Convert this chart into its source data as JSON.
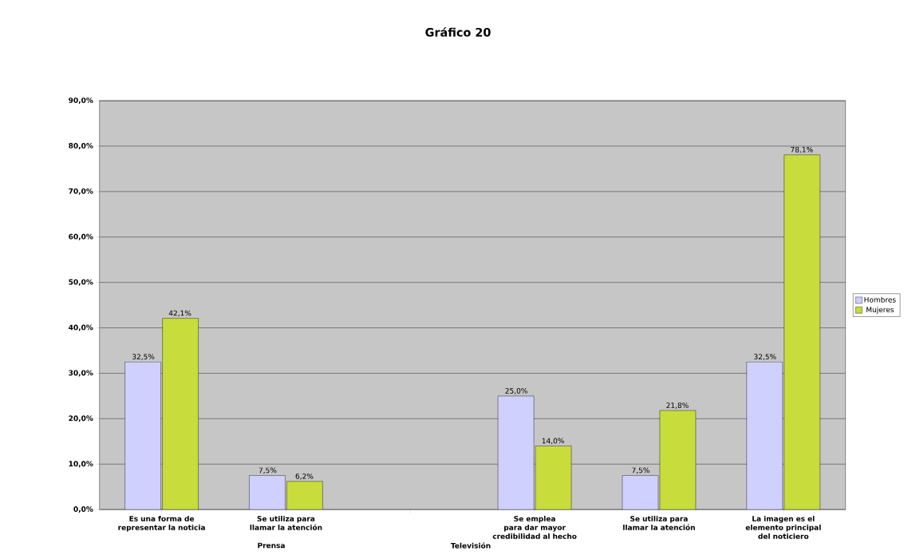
{
  "chart_data": {
    "type": "bar",
    "title": "Gráfico 20",
    "categories": [
      "Es una forma de representar la noticia",
      "Se utiliza para llamar la atención",
      null,
      "Se emplea para dar mayor credibilidad al hecho",
      "Se utiliza para llamar la atención",
      "La imagen es el elemento principal del noticiero"
    ],
    "series": [
      {
        "name": "Hombres",
        "color": "#d0d0ff",
        "values": [
          32.5,
          7.5,
          null,
          25.0,
          7.5,
          32.5
        ],
        "value_labels": [
          "32,5%",
          "7,5%",
          null,
          "25,0%",
          "7,5%",
          "32,5%"
        ]
      },
      {
        "name": "Mujeres",
        "color": "#c8dc3c",
        "values": [
          42.1,
          6.2,
          null,
          14.0,
          21.8,
          78.1
        ],
        "value_labels": [
          "42,1%",
          "6,2%",
          null,
          "14,0%",
          "21,8%",
          "78,1%"
        ]
      }
    ],
    "ylim": [
      0,
      90
    ],
    "yticks": [
      {
        "value": 0,
        "label": "0,0%"
      },
      {
        "value": 10,
        "label": "10,0%"
      },
      {
        "value": 20,
        "label": "20,0%"
      },
      {
        "value": 30,
        "label": "30,0%"
      },
      {
        "value": 40,
        "label": "40,0%"
      },
      {
        "value": 50,
        "label": "50,0%"
      },
      {
        "value": 60,
        "label": "60,0%"
      },
      {
        "value": 70,
        "label": "70,0%"
      },
      {
        "value": 80,
        "label": "80,0%"
      },
      {
        "value": 90,
        "label": "90,0%"
      }
    ],
    "grid": "y",
    "legend": "right",
    "annotations": [
      "Prensa",
      "Televisión"
    ]
  }
}
